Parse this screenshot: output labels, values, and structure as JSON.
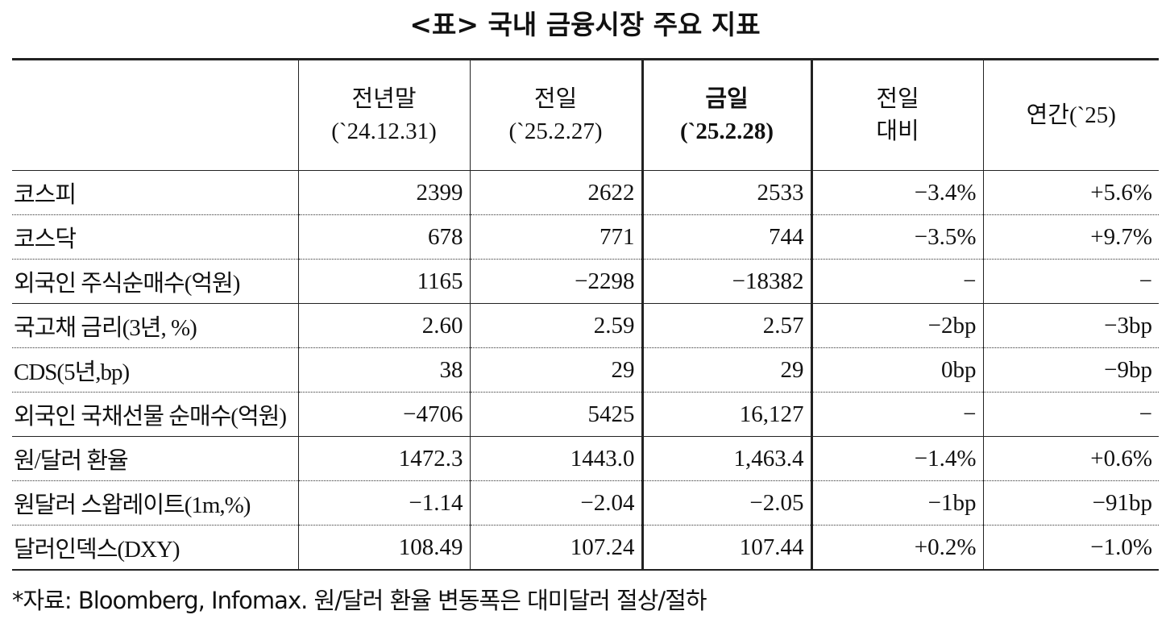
{
  "title": "<표> 국내 금융시장 주요 지표",
  "table": {
    "header": [
      [
        "전년말",
        "(`24.12.31)"
      ],
      [
        "전일",
        "(`25.2.27)"
      ],
      [
        "금일",
        "(`25.2.28)"
      ],
      [
        "전일",
        "대비"
      ],
      [
        "연간(`25)"
      ]
    ],
    "rows": [
      [
        "코스피",
        "2399",
        "2622",
        "2533",
        "−3.4%",
        "+5.6%"
      ],
      [
        "코스닥",
        "678",
        "771",
        "744",
        "−3.5%",
        "+9.7%"
      ],
      [
        "외국인 주식순매수(억원)",
        "1165",
        "−2298",
        "−18382",
        "−",
        "−"
      ],
      [
        "국고채 금리(3년, %)",
        "2.60",
        "2.59",
        "2.57",
        "−2bp",
        "−3bp"
      ],
      [
        "CDS(5년,bp)",
        "38",
        "29",
        "29",
        "0bp",
        "−9bp"
      ],
      [
        "외국인 국채선물 순매수(억원)",
        "−4706",
        "5425",
        "16,127",
        "−",
        "−"
      ],
      [
        "원/달러 환율",
        "1472.3",
        "1443.0",
        "1,463.4",
        "−1.4%",
        "+0.6%"
      ],
      [
        "원달러 스왑레이트(1m,%)",
        "−1.14",
        "−2.04",
        "−2.05",
        "−1bp",
        "−91bp"
      ],
      [
        "달러인덱스(DXY)",
        "108.49",
        "107.24",
        "107.44",
        "+0.2%",
        "−1.0%"
      ]
    ]
  },
  "footnote": "*자료: Bloomberg, Infomax. 원/달러 환율 변동폭은 대미달러 절상/절하"
}
